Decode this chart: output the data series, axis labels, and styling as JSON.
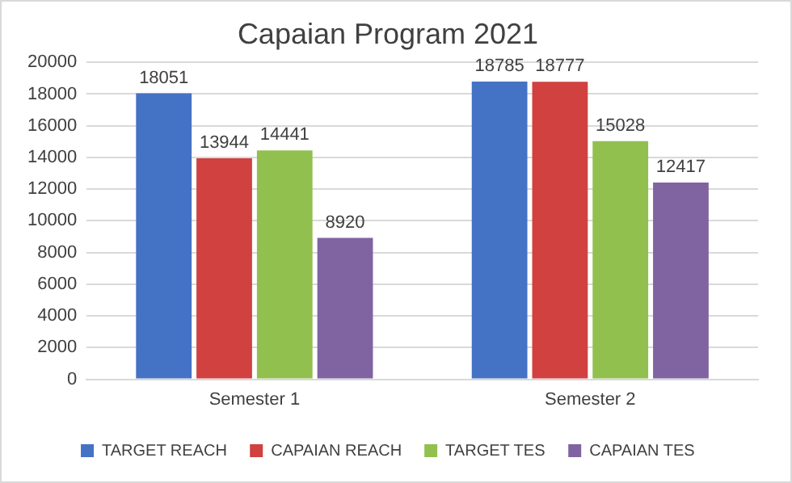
{
  "chart_data": {
    "type": "bar",
    "title": "Capaian Program 2021",
    "categories": [
      "Semester 1",
      "Semester 2"
    ],
    "series": [
      {
        "name": "TARGET REACH",
        "color": "#4472c4",
        "values": [
          18051,
          18785
        ]
      },
      {
        "name": "CAPAIAN REACH",
        "color": "#d0413f",
        "values": [
          13944,
          18777
        ]
      },
      {
        "name": "TARGET TES",
        "color": "#92c04f",
        "values": [
          14441,
          15028
        ]
      },
      {
        "name": "CAPAIAN TES",
        "color": "#8064a2",
        "values": [
          8920,
          12417
        ]
      }
    ],
    "ylim": [
      0,
      20000
    ],
    "yticks": [
      0,
      2000,
      4000,
      6000,
      8000,
      10000,
      12000,
      14000,
      16000,
      18000,
      20000
    ],
    "grid": "y",
    "legend": "bottom",
    "data_labels": true
  }
}
